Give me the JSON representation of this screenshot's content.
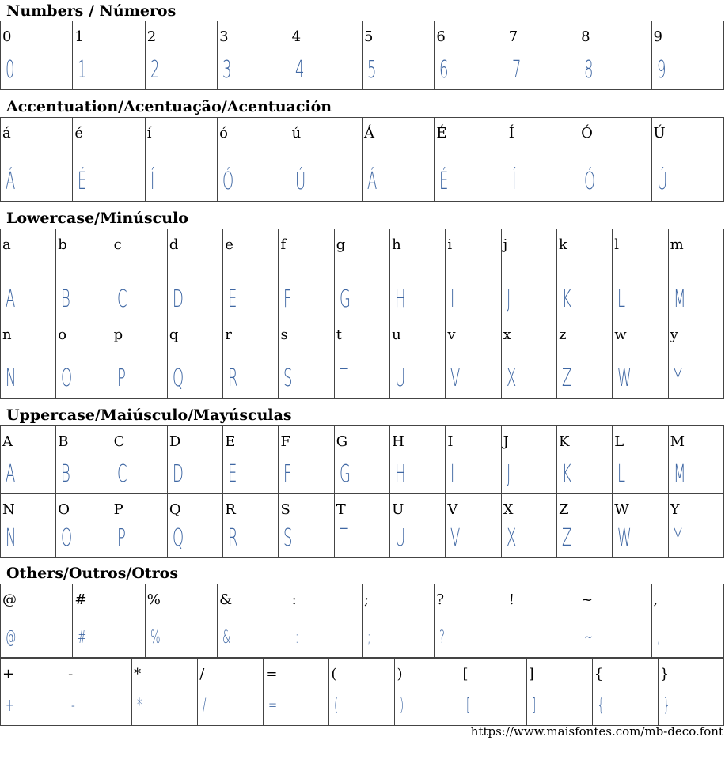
{
  "sections": [
    {
      "title": "Numbers / Números",
      "rows": [
        [
          "0",
          "1",
          "2",
          "3",
          "4",
          "5",
          "6",
          "7",
          "8",
          "9"
        ]
      ]
    },
    {
      "title": "Accentuation/Acentuação/Acentuación",
      "rows": [
        [
          "á",
          "é",
          "í",
          "ó",
          "ú",
          "Á",
          "É",
          "Í",
          "Ó",
          "Ú"
        ]
      ]
    },
    {
      "title": "Lowercase/Minúsculo",
      "rows": [
        [
          "a",
          "b",
          "c",
          "d",
          "e",
          "f",
          "g",
          "h",
          "i",
          "j",
          "k",
          "l",
          "m"
        ],
        [
          "n",
          "o",
          "p",
          "q",
          "r",
          "s",
          "t",
          "u",
          "v",
          "x",
          "z",
          "w",
          "y"
        ]
      ]
    },
    {
      "title": "Uppercase/Maiúsculo/Mayúsculas",
      "rows": [
        [
          "A",
          "B",
          "C",
          "D",
          "E",
          "F",
          "G",
          "H",
          "I",
          "J",
          "K",
          "L",
          "M"
        ],
        [
          "N",
          "O",
          "P",
          "Q",
          "R",
          "S",
          "T",
          "U",
          "V",
          "X",
          "Z",
          "W",
          "Y"
        ]
      ]
    },
    {
      "title": "Others/Outros/Otros",
      "rows": [
        [
          "@",
          "#",
          "%",
          "&",
          ":",
          ";",
          "?",
          "!",
          "~",
          ","
        ],
        [
          "+",
          "-",
          "*",
          "/",
          "=",
          "(",
          ")",
          "[",
          "]",
          "{",
          "}"
        ]
      ]
    }
  ],
  "footer": "https://www.maisfontes.com/mb-deco.font",
  "colors": {
    "glyph": "#3f67a3",
    "border": "#444444"
  }
}
